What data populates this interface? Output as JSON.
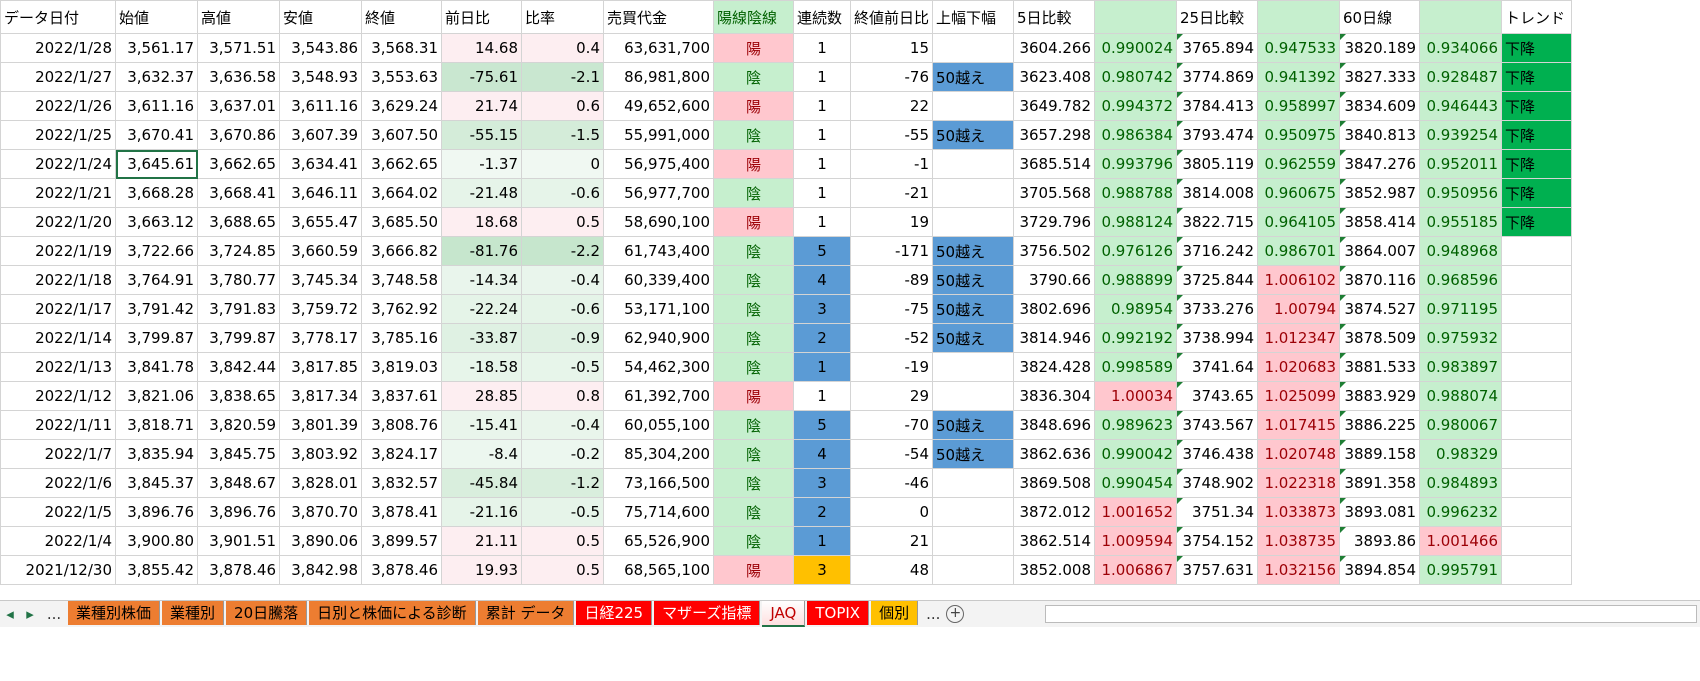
{
  "headers": [
    "データ日付",
    "始値",
    "高値",
    "安値",
    "終値",
    "前日比",
    "比率",
    "売買代金",
    "陽線陰線",
    "連続数",
    "終値前日比",
    "上幅下幅",
    "5日比較",
    "",
    "25日比較",
    "",
    "60日線",
    "",
    "トレンド"
  ],
  "rows": [
    [
      "2022/1/28",
      "3,561.17",
      "3,571.51",
      "3,543.86",
      "3,568.31",
      "14.68",
      "0.4",
      "63,631,700",
      "陽",
      "1",
      "15",
      "",
      "3604.266",
      "0.990024",
      "3765.894",
      "0.947533",
      "3820.189",
      "0.934066",
      "下降"
    ],
    [
      "2022/1/27",
      "3,632.37",
      "3,636.58",
      "3,548.93",
      "3,553.63",
      "-75.61",
      "-2.1",
      "86,981,800",
      "陰",
      "1",
      "-76",
      "50越え",
      "3623.408",
      "0.980742",
      "3774.869",
      "0.941392",
      "3827.333",
      "0.928487",
      "下降"
    ],
    [
      "2022/1/26",
      "3,611.16",
      "3,637.01",
      "3,611.16",
      "3,629.24",
      "21.74",
      "0.6",
      "49,652,600",
      "陽",
      "1",
      "22",
      "",
      "3649.782",
      "0.994372",
      "3784.413",
      "0.958997",
      "3834.609",
      "0.946443",
      "下降"
    ],
    [
      "2022/1/25",
      "3,670.41",
      "3,670.86",
      "3,607.39",
      "3,607.50",
      "-55.15",
      "-1.5",
      "55,991,000",
      "陰",
      "1",
      "-55",
      "50越え",
      "3657.298",
      "0.986384",
      "3793.474",
      "0.950975",
      "3840.813",
      "0.939254",
      "下降"
    ],
    [
      "2022/1/24",
      "3,645.61",
      "3,662.65",
      "3,634.41",
      "3,662.65",
      "-1.37",
      "0",
      "56,975,400",
      "陽",
      "1",
      "-1",
      "",
      "3685.514",
      "0.993796",
      "3805.119",
      "0.962559",
      "3847.276",
      "0.952011",
      "下降"
    ],
    [
      "2022/1/21",
      "3,668.28",
      "3,668.41",
      "3,646.11",
      "3,664.02",
      "-21.48",
      "-0.6",
      "56,977,700",
      "陰",
      "1",
      "-21",
      "",
      "3705.568",
      "0.988788",
      "3814.008",
      "0.960675",
      "3852.987",
      "0.950956",
      "下降"
    ],
    [
      "2022/1/20",
      "3,663.12",
      "3,688.65",
      "3,655.47",
      "3,685.50",
      "18.68",
      "0.5",
      "58,690,100",
      "陽",
      "1",
      "19",
      "",
      "3729.796",
      "0.988124",
      "3822.715",
      "0.964105",
      "3858.414",
      "0.955185",
      "下降"
    ],
    [
      "2022/1/19",
      "3,722.66",
      "3,724.85",
      "3,660.59",
      "3,666.82",
      "-81.76",
      "-2.2",
      "61,743,400",
      "陰",
      "5",
      "-171",
      "50越え",
      "3756.502",
      "0.976126",
      "3716.242",
      "0.986701",
      "3864.007",
      "0.948968",
      ""
    ],
    [
      "2022/1/18",
      "3,764.91",
      "3,780.77",
      "3,745.34",
      "3,748.58",
      "-14.34",
      "-0.4",
      "60,339,400",
      "陰",
      "4",
      "-89",
      "50越え",
      "3790.66",
      "0.988899",
      "3725.844",
      "1.006102",
      "3870.116",
      "0.968596",
      ""
    ],
    [
      "2022/1/17",
      "3,791.42",
      "3,791.83",
      "3,759.72",
      "3,762.92",
      "-22.24",
      "-0.6",
      "53,171,100",
      "陰",
      "3",
      "-75",
      "50越え",
      "3802.696",
      "0.98954",
      "3733.276",
      "1.00794",
      "3874.527",
      "0.971195",
      ""
    ],
    [
      "2022/1/14",
      "3,799.87",
      "3,799.87",
      "3,778.17",
      "3,785.16",
      "-33.87",
      "-0.9",
      "62,940,900",
      "陰",
      "2",
      "-52",
      "50越え",
      "3814.946",
      "0.992192",
      "3738.994",
      "1.012347",
      "3878.509",
      "0.975932",
      ""
    ],
    [
      "2022/1/13",
      "3,841.78",
      "3,842.44",
      "3,817.85",
      "3,819.03",
      "-18.58",
      "-0.5",
      "54,462,300",
      "陰",
      "1",
      "-19",
      "",
      "3824.428",
      "0.998589",
      "3741.64",
      "1.020683",
      "3881.533",
      "0.983897",
      ""
    ],
    [
      "2022/1/12",
      "3,821.06",
      "3,838.65",
      "3,817.34",
      "3,837.61",
      "28.85",
      "0.8",
      "61,392,700",
      "陽",
      "1",
      "29",
      "",
      "3836.304",
      "1.00034",
      "3743.65",
      "1.025099",
      "3883.929",
      "0.988074",
      ""
    ],
    [
      "2022/1/11",
      "3,818.71",
      "3,820.59",
      "3,801.39",
      "3,808.76",
      "-15.41",
      "-0.4",
      "60,055,100",
      "陰",
      "5",
      "-70",
      "50越え",
      "3848.696",
      "0.989623",
      "3743.567",
      "1.017415",
      "3886.225",
      "0.980067",
      ""
    ],
    [
      "2022/1/7",
      "3,835.94",
      "3,845.75",
      "3,803.92",
      "3,824.17",
      "-8.4",
      "-0.2",
      "85,304,200",
      "陰",
      "4",
      "-54",
      "50越え",
      "3862.636",
      "0.990042",
      "3746.438",
      "1.020748",
      "3889.158",
      "0.98329",
      ""
    ],
    [
      "2022/1/6",
      "3,845.37",
      "3,848.67",
      "3,828.01",
      "3,832.57",
      "-45.84",
      "-1.2",
      "73,166,500",
      "陰",
      "3",
      "-46",
      "",
      "3869.508",
      "0.990454",
      "3748.902",
      "1.022318",
      "3891.358",
      "0.984893",
      ""
    ],
    [
      "2022/1/5",
      "3,896.76",
      "3,896.76",
      "3,870.70",
      "3,878.41",
      "-21.16",
      "-0.5",
      "75,714,600",
      "陰",
      "2",
      "0",
      "",
      "3872.012",
      "1.001652",
      "3751.34",
      "1.033873",
      "3893.081",
      "0.996232",
      ""
    ],
    [
      "2022/1/4",
      "3,900.80",
      "3,901.51",
      "3,890.06",
      "3,899.57",
      "21.11",
      "0.5",
      "65,526,900",
      "陰",
      "1",
      "21",
      "",
      "3862.514",
      "1.009594",
      "3754.152",
      "1.038735",
      "3893.86",
      "1.001466",
      ""
    ],
    [
      "2021/12/30",
      "3,855.42",
      "3,878.46",
      "3,842.98",
      "3,878.46",
      "19.93",
      "0.5",
      "68,565,100",
      "陽",
      "3",
      "48",
      "",
      "3852.008",
      "1.006867",
      "3757.631",
      "1.032156",
      "3894.854",
      "0.995791",
      ""
    ]
  ],
  "streak_colors": [
    "",
    "",
    "",
    "",
    "",
    "",
    "",
    "#5b9bd5",
    "#5b9bd5",
    "#5b9bd5",
    "#5b9bd5",
    "#5b9bd5",
    "",
    "#5b9bd5",
    "#5b9bd5",
    "#5b9bd5",
    "#5b9bd5",
    "#5b9bd5",
    "#ffc000"
  ],
  "colors": {
    "up_fill": "#ffc7ce",
    "up_text": "#9c0006",
    "down_fill": "#c6efce",
    "down_text": "#006100",
    "trend_fill": "#00b050",
    "band_fill": "#5b9bd5",
    "header_fill": "#c6efce"
  },
  "selected_cell": "B5",
  "sheet_tabs": [
    {
      "label": "業種別株価",
      "color": "#ed7d31",
      "text": "#000"
    },
    {
      "label": "業種別",
      "color": "#ed7d31",
      "text": "#000"
    },
    {
      "label": "20日騰落",
      "color": "#ed7d31",
      "text": "#000"
    },
    {
      "label": "日別と株価による診断",
      "color": "#ed7d31",
      "text": "#000"
    },
    {
      "label": "累計 データ",
      "color": "#ed7d31",
      "text": "#000"
    },
    {
      "label": "日経225",
      "color": "#ff0000",
      "text": "#fff"
    },
    {
      "label": "マザーズ指標",
      "color": "#ff0000",
      "text": "#fff"
    },
    {
      "label": "JAQ",
      "color": "#ffffff",
      "text": "#c00000",
      "active": true
    },
    {
      "label": "TOPIX",
      "color": "#ff0000",
      "text": "#fff"
    },
    {
      "label": "個別",
      "color": "#ffc000",
      "text": "#000"
    }
  ],
  "tab_more": "...",
  "add_sheet": "+"
}
